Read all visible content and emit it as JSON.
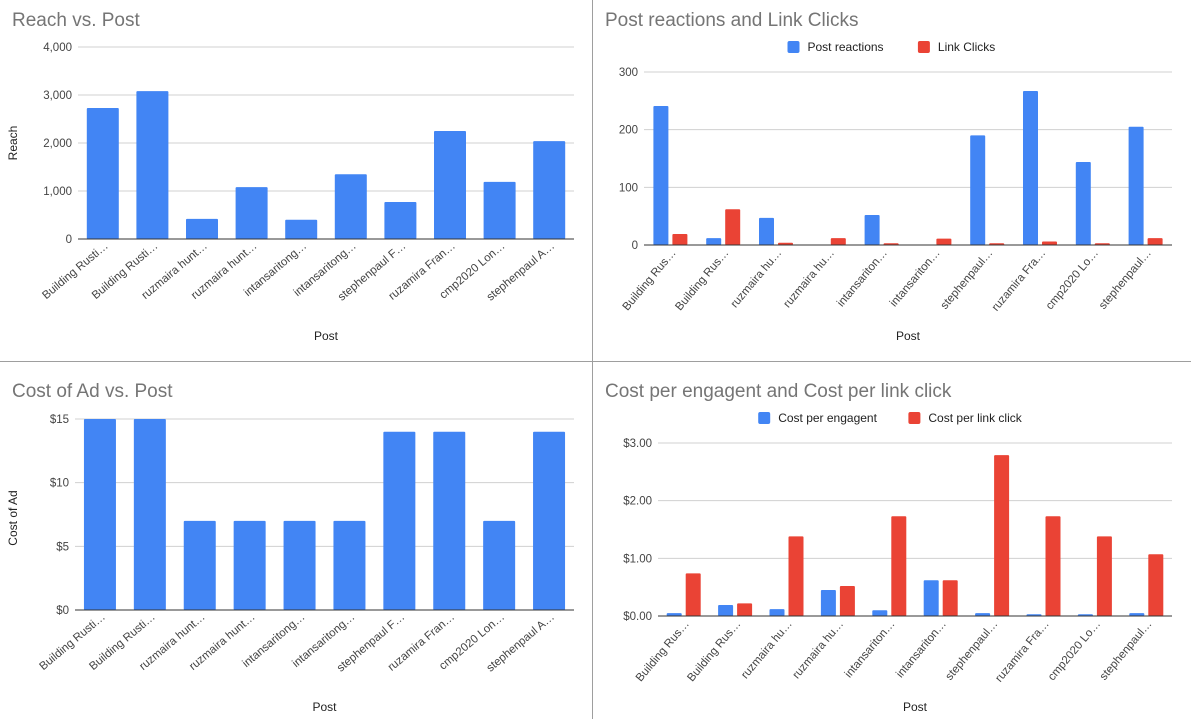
{
  "chart_data": [
    {
      "type": "bar",
      "title": "Reach vs. Post",
      "xlabel": "Post",
      "ylabel": "Reach",
      "ylim": [
        0,
        4000
      ],
      "yticks": [
        "0",
        "1,000",
        "2,000",
        "3,000",
        "4,000"
      ],
      "categories": [
        "Building Rusti…",
        "Building Rusti…",
        "ruzmaira hunt…",
        "ruzmaira hunt…",
        "intansaritong…",
        "intansaritong…",
        "stephenpaul F…",
        "ruzamira Fran…",
        "cmp2020 Lon…",
        "stephenpaul A…"
      ],
      "series": [
        {
          "color": "#4285f4",
          "values": [
            2730,
            3080,
            420,
            1080,
            400,
            1350,
            770,
            2250,
            1190,
            2040
          ]
        }
      ],
      "legend": "none",
      "grid": true
    },
    {
      "type": "bar",
      "title": "Post reactions and Link Clicks",
      "xlabel": "Post",
      "ylabel": "",
      "ylim": [
        0,
        300
      ],
      "yticks": [
        "0",
        "100",
        "200",
        "300"
      ],
      "categories": [
        "Building Rus…",
        "Building Rus…",
        "ruzmaira hu…",
        "ruzmaira hu…",
        "intansariton…",
        "intansariton…",
        "stephenpaul…",
        "ruzamira Fra…",
        "cmp2020 Lo…",
        "stephenpaul…"
      ],
      "series": [
        {
          "name": "Post reactions",
          "color": "#4285f4",
          "values": [
            241,
            12,
            47,
            0,
            52,
            0,
            190,
            267,
            144,
            205
          ]
        },
        {
          "name": "Link Clicks",
          "color": "#ea4335",
          "values": [
            19,
            62,
            4,
            12,
            3,
            11,
            3,
            6,
            3,
            12
          ]
        }
      ],
      "legend": "top",
      "grid": true
    },
    {
      "type": "bar",
      "title": "Cost of Ad vs. Post",
      "xlabel": "Post",
      "ylabel": "Cost of Ad",
      "ylim": [
        0,
        15
      ],
      "yticks": [
        "$0",
        "$5",
        "$10",
        "$15"
      ],
      "categories": [
        "Building Rusti…",
        "Building Rusti…",
        "ruzmaira hunt…",
        "ruzmaira hunt…",
        "intansaritong…",
        "intansaritong…",
        "stephenpaul F…",
        "ruzamira Fran…",
        "cmp2020 Lon…",
        "stephenpaul A…"
      ],
      "series": [
        {
          "color": "#4285f4",
          "values": [
            15,
            15,
            7,
            7,
            7,
            7,
            14,
            14,
            7,
            14
          ]
        }
      ],
      "legend": "none",
      "grid": true
    },
    {
      "type": "bar",
      "title": "Cost per engagent and Cost per link click",
      "xlabel": "Post",
      "ylabel": "",
      "ylim": [
        0,
        3
      ],
      "yticks": [
        "$0.00",
        "$1.00",
        "$2.00",
        "$3.00"
      ],
      "categories": [
        "Building Rus…",
        "Building Rus…",
        "ruzmaira hu…",
        "ruzmaira hu…",
        "intansariton…",
        "intansariton…",
        "stephenpaul…",
        "ruzamira Fra…",
        "cmp2020 Lo…",
        "stephenpaul…"
      ],
      "series": [
        {
          "name": "Cost per engagent",
          "color": "#4285f4",
          "values": [
            0.05,
            0.19,
            0.12,
            0.45,
            0.1,
            0.62,
            0.05,
            0.03,
            0.03,
            0.05
          ]
        },
        {
          "name": "Cost per link click",
          "color": "#ea4335",
          "values": [
            0.74,
            0.22,
            1.38,
            0.52,
            1.73,
            0.62,
            2.79,
            1.73,
            1.38,
            1.07
          ]
        }
      ],
      "legend": "top",
      "grid": true
    }
  ]
}
